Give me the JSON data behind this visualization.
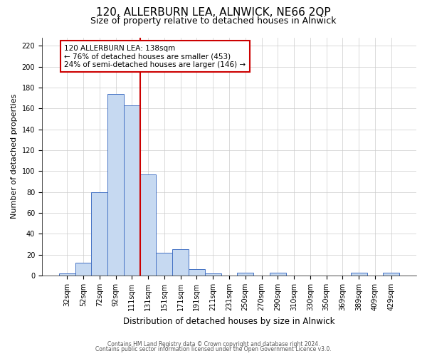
{
  "title": "120, ALLERBURN LEA, ALNWICK, NE66 2QP",
  "subtitle": "Size of property relative to detached houses in Alnwick",
  "xlabel": "Distribution of detached houses by size in Alnwick",
  "ylabel": "Number of detached properties",
  "footer_line1": "Contains HM Land Registry data © Crown copyright and database right 2024.",
  "footer_line2": "Contains public sector information licensed under the Open Government Licence v3.0.",
  "annotation_line1": "120 ALLERBURN LEA: 138sqm",
  "annotation_line2": "← 76% of detached houses are smaller (453)",
  "annotation_line3": "24% of semi-detached houses are larger (146) →",
  "bar_labels": [
    "32sqm",
    "52sqm",
    "72sqm",
    "92sqm",
    "111sqm",
    "131sqm",
    "151sqm",
    "171sqm",
    "191sqm",
    "211sqm",
    "231sqm",
    "250sqm",
    "270sqm",
    "290sqm",
    "310sqm",
    "330sqm",
    "350sqm",
    "369sqm",
    "389sqm",
    "409sqm",
    "429sqm"
  ],
  "bar_values": [
    2,
    12,
    80,
    174,
    163,
    97,
    22,
    25,
    6,
    2,
    0,
    3,
    0,
    3,
    0,
    0,
    0,
    0,
    3,
    0,
    3
  ],
  "bar_color": "#c6d9f1",
  "bar_edge_color": "#4472c4",
  "vline_x": 4.5,
  "vline_color": "#cc0000",
  "ylim": [
    0,
    228
  ],
  "yticks": [
    0,
    20,
    40,
    60,
    80,
    100,
    120,
    140,
    160,
    180,
    200,
    220
  ],
  "grid_color": "#cccccc",
  "background_color": "#ffffff",
  "title_fontsize": 11,
  "subtitle_fontsize": 9,
  "tick_fontsize": 7,
  "ylabel_fontsize": 8,
  "xlabel_fontsize": 8.5,
  "annotation_fontsize": 7.5,
  "annotation_box_color": "#ffffff",
  "annotation_box_edgecolor": "#cc0000",
  "footer_fontsize": 5.5
}
